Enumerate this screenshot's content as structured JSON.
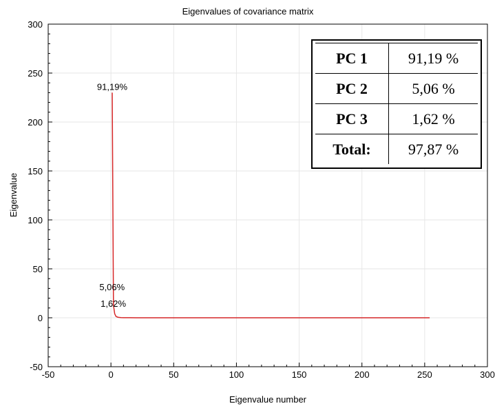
{
  "chart_data": {
    "type": "line",
    "title": "Eigenvalues of covariance matrix",
    "xlabel": "Eigenvalue number",
    "ylabel": "Eigenvalue",
    "xlim": [
      -50,
      300
    ],
    "ylim": [
      -50,
      300
    ],
    "x_ticks": [
      "-50",
      "0",
      "50",
      "100",
      "150",
      "200",
      "250",
      "300"
    ],
    "y_ticks": [
      "300",
      "250",
      "200",
      "150",
      "100",
      "50",
      "0",
      "-50"
    ],
    "grid": true,
    "line_color": "#d62728",
    "series": [
      {
        "x": [
          1,
          2,
          3,
          4,
          5,
          6,
          8,
          10,
          15,
          20,
          50,
          100,
          150,
          200,
          254
        ],
        "y": [
          230,
          12.8,
          4.1,
          1.5,
          0.8,
          0.4,
          0.2,
          0.1,
          0.05,
          0.02,
          0,
          0,
          0,
          0,
          0
        ]
      }
    ],
    "annotations": [
      {
        "text": "91,19%",
        "x": 1,
        "y": 230
      },
      {
        "text": "5,06%",
        "x": 2,
        "y": 12.8
      },
      {
        "text": "1,62%",
        "x": 3,
        "y": 4.1
      }
    ]
  },
  "table": {
    "rows": [
      {
        "label": "PC 1",
        "value": "91,19 %"
      },
      {
        "label": "PC 2",
        "value": "5,06 %"
      },
      {
        "label": "PC 3",
        "value": "1,62 %"
      },
      {
        "label": "Total:",
        "value": "97,87 %"
      }
    ]
  }
}
